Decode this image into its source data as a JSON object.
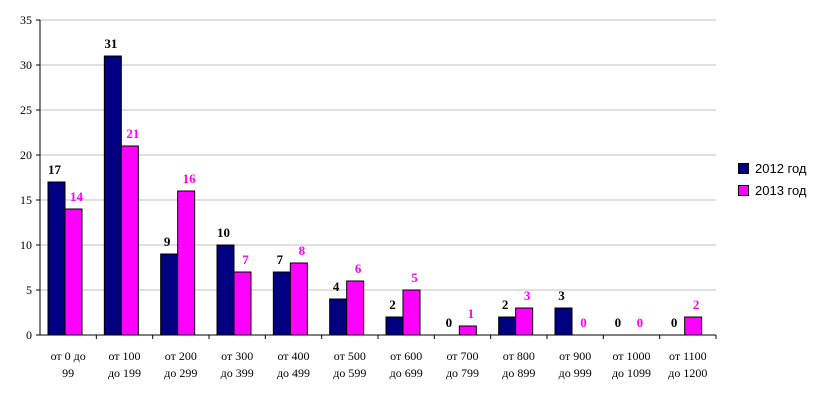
{
  "chart_data": {
    "type": "bar",
    "title": "",
    "xlabel": "",
    "ylabel": "",
    "ylim": [
      0,
      35
    ],
    "yticks": [
      0,
      5,
      10,
      15,
      20,
      25,
      30,
      35
    ],
    "grid": true,
    "legend_position": "right",
    "categories": [
      [
        "от 0 до",
        "99"
      ],
      [
        "от 100",
        "до 199"
      ],
      [
        "от 200",
        "до 299"
      ],
      [
        "от 300",
        "до 399"
      ],
      [
        "от 400",
        "до 499"
      ],
      [
        "от 500",
        "до 599"
      ],
      [
        "от 600",
        "до 699"
      ],
      [
        "от 700",
        "до 799"
      ],
      [
        "от 800",
        "до 899"
      ],
      [
        "от 900",
        "до 999"
      ],
      [
        "от 1000",
        "до 1099"
      ],
      [
        "от 1100",
        "до 1200"
      ]
    ],
    "series": [
      {
        "name": "2012 год",
        "color": "#000080",
        "label_color": "#000000",
        "values": [
          17,
          31,
          9,
          10,
          7,
          4,
          2,
          0,
          2,
          3,
          0,
          0
        ]
      },
      {
        "name": "2013 год",
        "color": "#ff00ff",
        "label_color": "#ff00ff",
        "values": [
          14,
          21,
          16,
          7,
          8,
          6,
          5,
          1,
          3,
          0,
          0,
          2
        ]
      }
    ]
  }
}
